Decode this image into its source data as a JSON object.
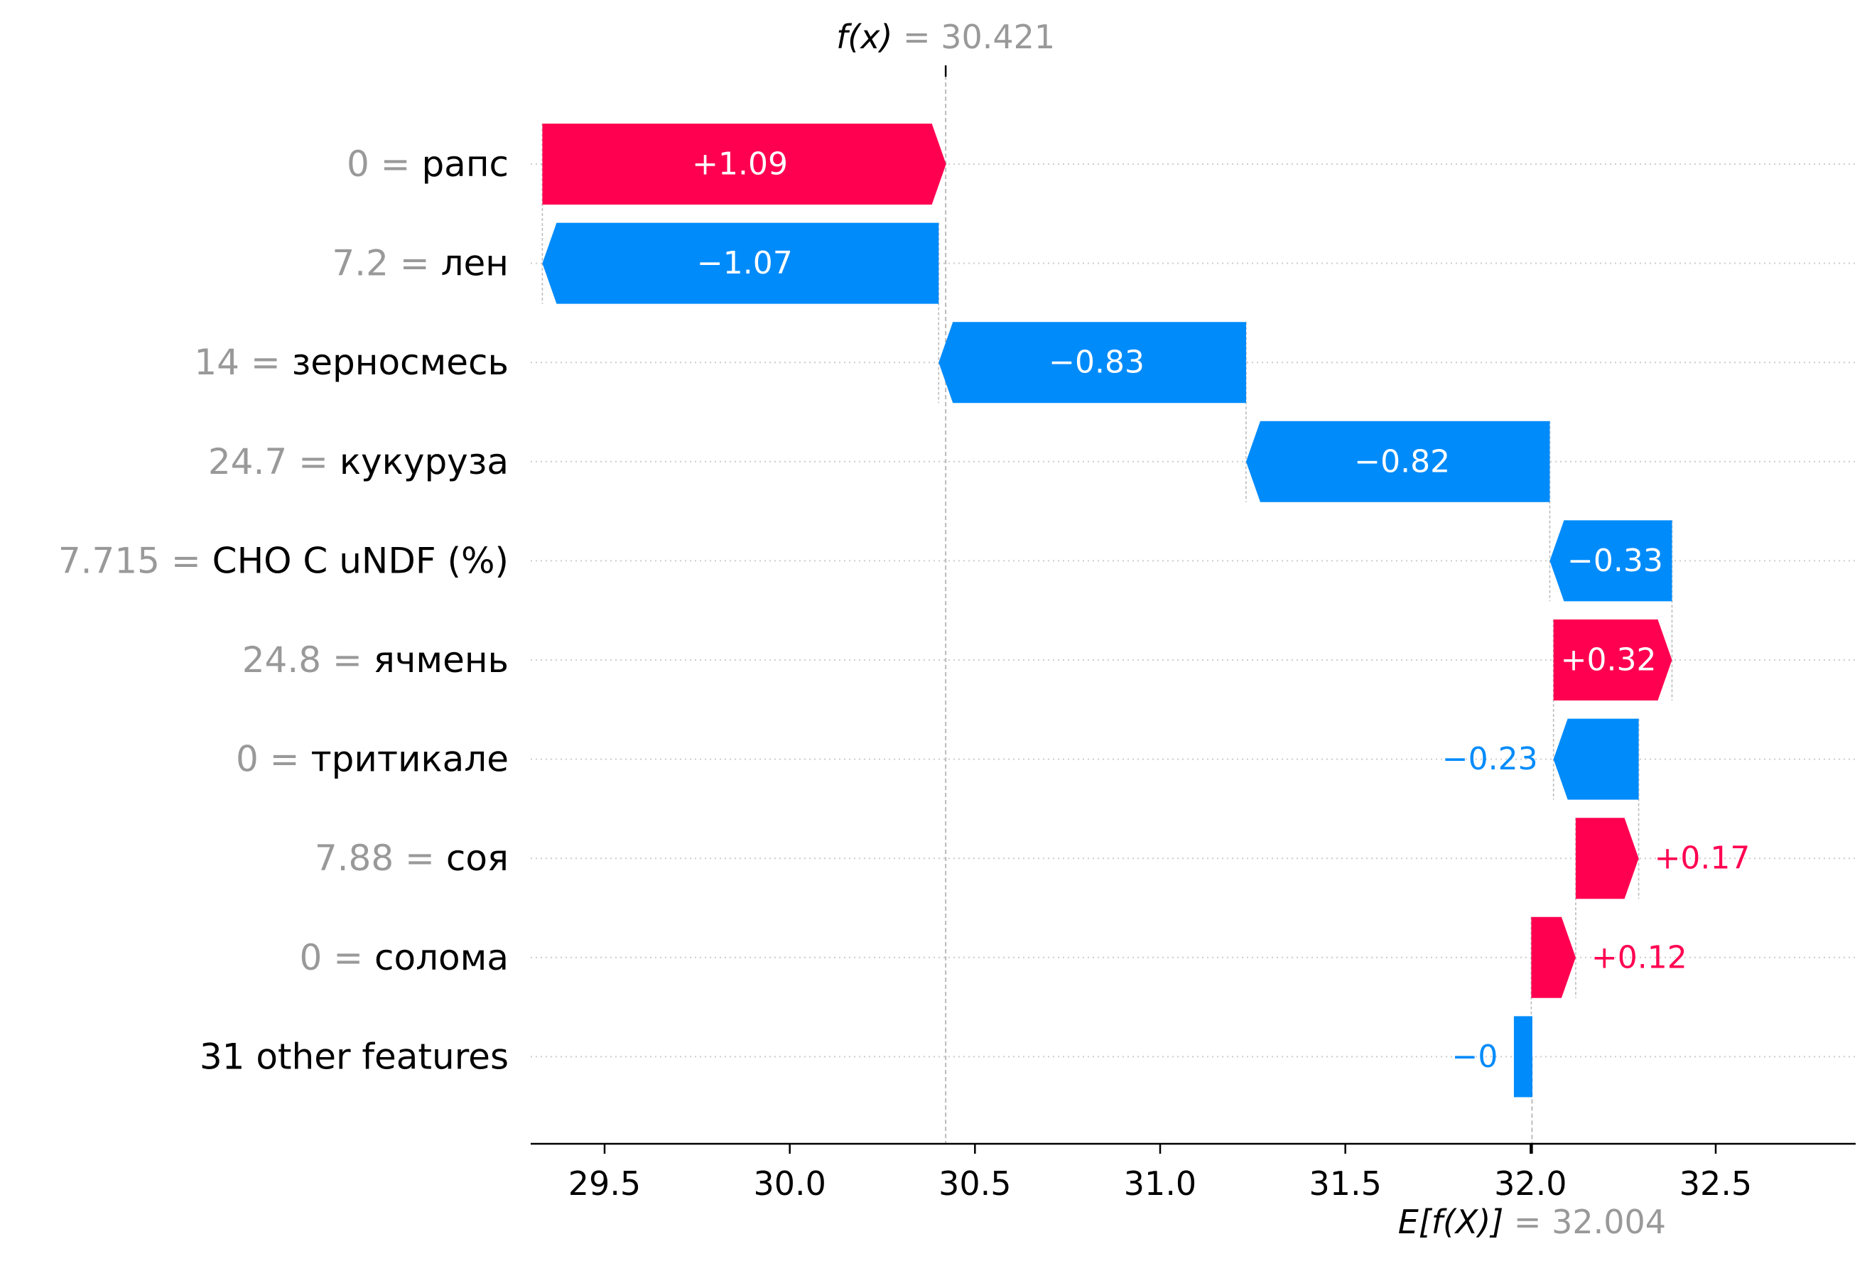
{
  "chart_data": {
    "type": "waterfall",
    "fx": {
      "label_prefix": "f(x)",
      "equals": " = ",
      "value_text": "30.421",
      "value": 30.421
    },
    "ex": {
      "label_prefix": "E[f(X)]",
      "equals": " = ",
      "value_text": "32.004",
      "value": 32.004
    },
    "x_ticks": [
      29.5,
      30.0,
      30.5,
      31.0,
      31.5,
      32.0,
      32.5
    ],
    "x_tick_labels": [
      "29.5",
      "30.0",
      "30.5",
      "31.0",
      "31.5",
      "32.0",
      "32.5"
    ],
    "xlim": [
      29.32,
      32.88
    ],
    "features": [
      {
        "value_text": "0",
        "name": "рапс",
        "contribution": 1.09,
        "label": "+1.09",
        "label_inside": true
      },
      {
        "value_text": "7.2",
        "name": "лен",
        "contribution": -1.07,
        "label": "−1.07",
        "label_inside": true
      },
      {
        "value_text": "14",
        "name": "зерносмесь",
        "contribution": -0.83,
        "label": "−0.83",
        "label_inside": true
      },
      {
        "value_text": "24.7",
        "name": "кукуруза",
        "contribution": -0.82,
        "label": "−0.82",
        "label_inside": true
      },
      {
        "value_text": "7.715",
        "name": "CHO C uNDF (%)",
        "contribution": -0.33,
        "label": "−0.33",
        "label_inside": true
      },
      {
        "value_text": "24.8",
        "name": "ячмень",
        "contribution": 0.32,
        "label": "+0.32",
        "label_inside": true
      },
      {
        "value_text": "0",
        "name": "тритикале",
        "contribution": -0.23,
        "label": "−0.23",
        "label_inside": false
      },
      {
        "value_text": "7.88",
        "name": "соя",
        "contribution": 0.17,
        "label": "+0.17",
        "label_inside": false
      },
      {
        "value_text": "0",
        "name": "солома",
        "contribution": 0.12,
        "label": "+0.12",
        "label_inside": false
      },
      {
        "value_text": "",
        "name": "31 other features",
        "contribution": -0.002,
        "label": "−0",
        "label_inside": false
      }
    ],
    "colors": {
      "positive": "#ff0051",
      "negative": "#008bfb",
      "value_gray": "#999999",
      "text": "#000000",
      "inside_label": "#ffffff",
      "guide_gray": "#bbbbbb",
      "dotted_gray": "#cccccc"
    }
  }
}
